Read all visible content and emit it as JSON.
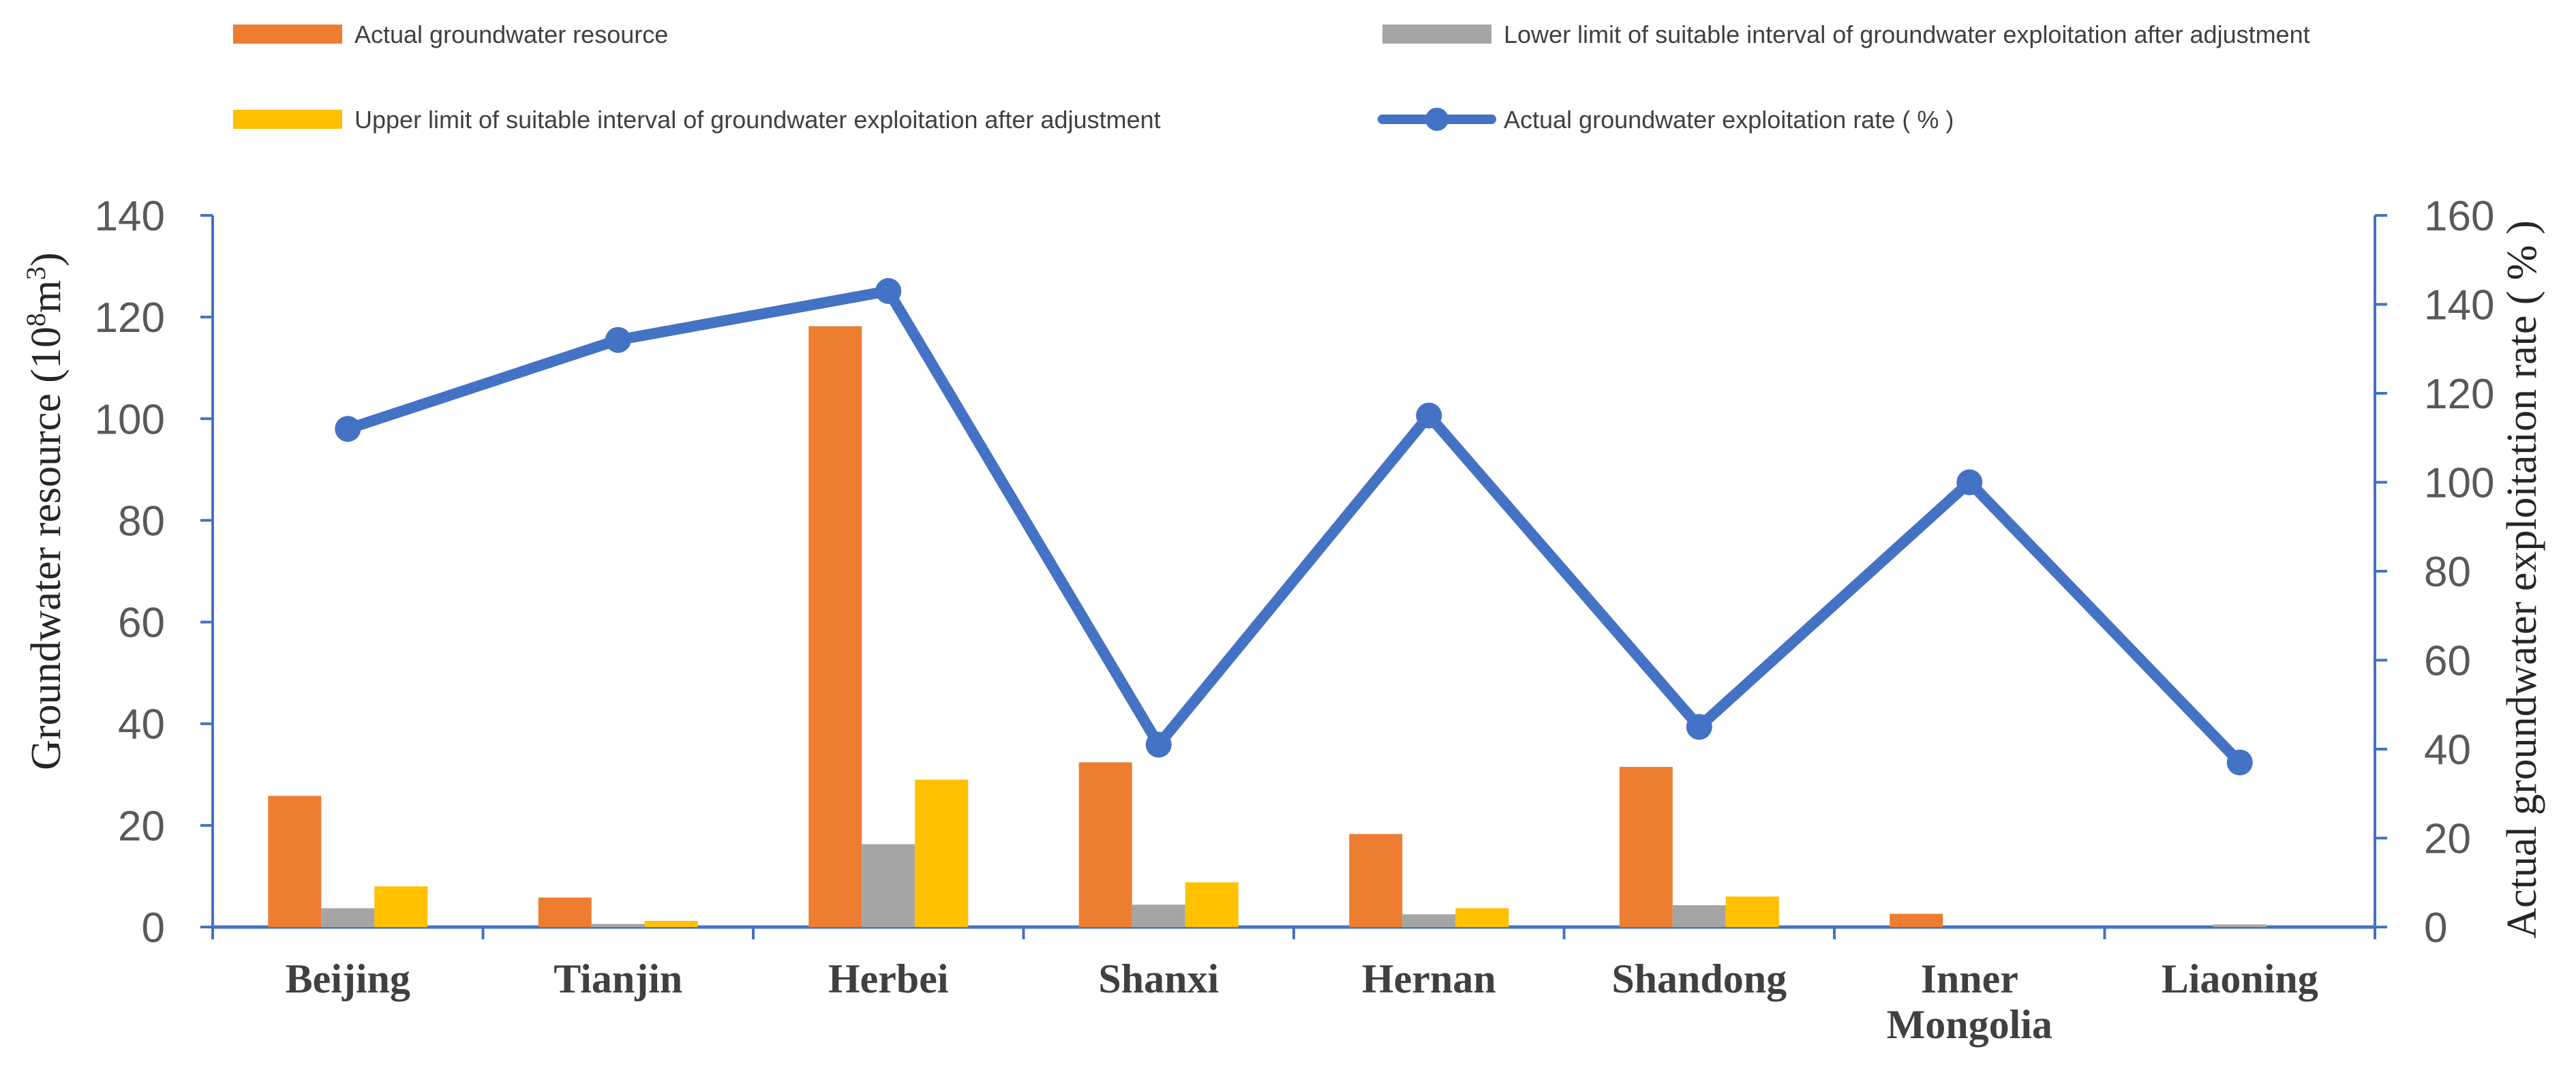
{
  "chart_data": {
    "type": "bar",
    "categories": [
      "Beijing",
      "Tianjin",
      "Herbei",
      "Shanxi",
      "Hernan",
      "Shandong",
      "Inner Mongolia",
      "Liaoning"
    ],
    "category_lines": [
      [
        "Beijing"
      ],
      [
        "Tianjin"
      ],
      [
        "Herbei"
      ],
      [
        "Shanxi"
      ],
      [
        "Hernan"
      ],
      [
        "Shandong"
      ],
      [
        "Inner",
        "Mongolia"
      ],
      [
        "Liaoning"
      ]
    ],
    "series": [
      {
        "name": "Actual groundwater resource",
        "type": "bar",
        "axis": "left",
        "color": "#ED7D31",
        "values": [
          25.8,
          5.8,
          118.2,
          32.4,
          18.3,
          31.5,
          2.6,
          0
        ]
      },
      {
        "name": "Lower limit of suitable interval of groundwater exploitation after adjustment",
        "type": "bar",
        "axis": "left",
        "color": "#A5A5A5",
        "values": [
          3.7,
          0.6,
          16.3,
          4.4,
          2.5,
          4.3,
          0,
          0.5
        ]
      },
      {
        "name": "Upper limit of suitable interval of groundwater exploitation after adjustment",
        "type": "bar",
        "axis": "left",
        "color": "#FFC000",
        "values": [
          8.0,
          1.2,
          29.0,
          8.8,
          3.7,
          6.0,
          0,
          0
        ]
      },
      {
        "name": "Actual groundwater exploitation rate ( % )",
        "type": "line",
        "axis": "right",
        "color": "#4472C4",
        "values": [
          112,
          132,
          143,
          41,
          115,
          45,
          100,
          37
        ]
      }
    ],
    "y_left": {
      "label_prefix": "Groundwater resource (10",
      "label_sup1": "8",
      "label_mid": "m",
      "label_sup2": "3",
      "label_suffix": ")",
      "lim": [
        0,
        140
      ],
      "ticks": [
        "0",
        "20",
        "40",
        "60",
        "80",
        "100",
        "120",
        "140"
      ]
    },
    "y_right": {
      "label": "Actual groundwater exploitation rate ( % )",
      "lim": [
        0,
        160
      ],
      "ticks": [
        "0",
        "20",
        "40",
        "60",
        "80",
        "100",
        "120",
        "140",
        "160"
      ]
    },
    "legend_placement": "top",
    "grid": false,
    "axis_color": "#4472C4"
  }
}
